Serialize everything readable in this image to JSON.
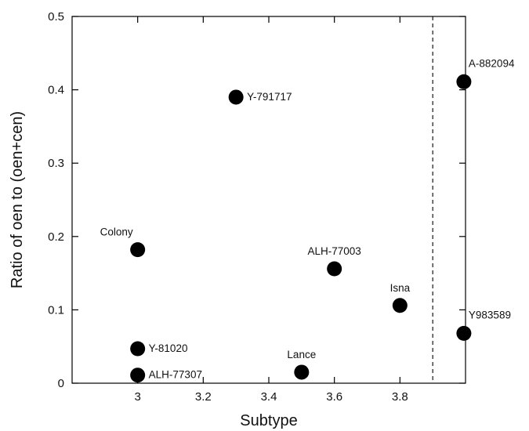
{
  "chart_data": {
    "type": "scatter",
    "title": "",
    "xlabel": "Subtype",
    "ylabel": "Ratio of oen to (oen+cen)",
    "xlim": [
      2.8,
      4.0
    ],
    "ylim": [
      0,
      0.5
    ],
    "xticks": [
      3,
      3.2,
      3.4,
      3.6,
      3.8
    ],
    "xtick_labels": [
      "3",
      "3.2",
      "3.4",
      "3.6",
      "3.8"
    ],
    "yticks": [
      0,
      0.1,
      0.2,
      0.3,
      0.4,
      0.5
    ],
    "ytick_labels": [
      "0",
      "0.1",
      "0.2",
      "0.3",
      "0.4",
      "0.5"
    ],
    "grid": false,
    "legend": "none",
    "marker_color": "#000000",
    "reference_lines": [
      {
        "axis": "x",
        "value": 3.9,
        "style": "dashed"
      }
    ],
    "points": [
      {
        "label": "Y-791717",
        "x": 3.3,
        "y": 0.39,
        "label_pos": "right"
      },
      {
        "label": "Colony",
        "x": 3.0,
        "y": 0.182,
        "label_pos": "upper-left"
      },
      {
        "label": "ALH-77003",
        "x": 3.6,
        "y": 0.156,
        "label_pos": "above"
      },
      {
        "label": "Isna",
        "x": 3.8,
        "y": 0.106,
        "label_pos": "above"
      },
      {
        "label": "Y-81020",
        "x": 3.0,
        "y": 0.047,
        "label_pos": "right"
      },
      {
        "label": "ALH-77307",
        "x": 3.0,
        "y": 0.011,
        "label_pos": "right"
      },
      {
        "label": "Lance",
        "x": 3.5,
        "y": 0.015,
        "label_pos": "above"
      },
      {
        "label": "A-882094",
        "x": 3.995,
        "y": 0.411,
        "label_pos": "upper-right"
      },
      {
        "label": "Y983589",
        "x": 3.995,
        "y": 0.068,
        "label_pos": "upper-right"
      }
    ]
  }
}
